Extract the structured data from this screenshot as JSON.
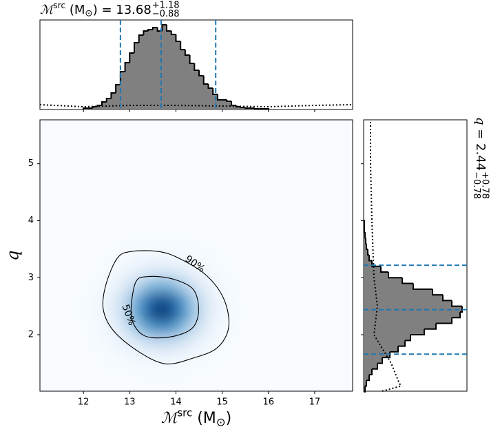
{
  "chart_data": {
    "type": "corner",
    "title": {
      "symbol": "ℳ",
      "sup": "src",
      "rest": " (M",
      "sub": "⊙",
      "tail": ") = 13.68",
      "upper": "+1.18",
      "lower": "−0.88"
    },
    "right_title": {
      "symbol": "q",
      "rest": " = 2.44",
      "upper": "+0.78",
      "lower": "−0.78"
    },
    "xlabel": {
      "symbol": "ℳ",
      "sup": "src",
      "rest": " (M",
      "sub": "⊙",
      "tail": ")"
    },
    "ylabel": "q",
    "xlim": [
      11.06,
      17.82
    ],
    "ylim": [
      1.01,
      5.77
    ],
    "xticks": [
      12,
      13,
      14,
      15,
      16,
      17
    ],
    "yticks": [
      2,
      3,
      4,
      5
    ],
    "density": {
      "colormap": "Blues",
      "vmax": 100,
      "x_edges": [
        12.0,
        12.25,
        12.5,
        12.75,
        13.0,
        13.25,
        13.5,
        13.75,
        14.0,
        14.25,
        14.5,
        14.75,
        15.0,
        15.25,
        15.5
      ],
      "y_edges": [
        1.25,
        1.5,
        1.75,
        2.0,
        2.25,
        2.5,
        2.75,
        3.0,
        3.25,
        3.5
      ],
      "values": [
        [
          0,
          0,
          0,
          0,
          0,
          1,
          1,
          1,
          1,
          0,
          0,
          0,
          0,
          0
        ],
        [
          0,
          0,
          1,
          2,
          3,
          5,
          6,
          6,
          4,
          2,
          1,
          0,
          0,
          0
        ],
        [
          0,
          1,
          3,
          7,
          13,
          21,
          26,
          24,
          18,
          10,
          5,
          2,
          0,
          0
        ],
        [
          0,
          2,
          6,
          17,
          34,
          53,
          64,
          61,
          45,
          26,
          12,
          4,
          1,
          0
        ],
        [
          1,
          3,
          10,
          25,
          50,
          79,
          97,
          92,
          68,
          39,
          18,
          6,
          2,
          0
        ],
        [
          1,
          3,
          9,
          23,
          46,
          71,
          87,
          83,
          61,
          35,
          16,
          6,
          1,
          0
        ],
        [
          0,
          1,
          5,
          12,
          25,
          39,
          47,
          45,
          33,
          19,
          9,
          3,
          1,
          0
        ],
        [
          0,
          0,
          2,
          4,
          8,
          13,
          15,
          15,
          11,
          6,
          3,
          1,
          0,
          0
        ],
        [
          0,
          0,
          0,
          1,
          2,
          2,
          3,
          3,
          2,
          1,
          1,
          0,
          0,
          0
        ]
      ]
    },
    "contours": [
      {
        "label": "50%",
        "x": [
          13.13,
          13.4,
          13.92,
          14.37,
          14.49,
          14.37,
          13.99,
          13.47,
          13.18,
          13.03
        ],
        "y": [
          2.92,
          3.02,
          2.98,
          2.8,
          2.44,
          2.13,
          1.98,
          1.95,
          2.07,
          2.37
        ]
      },
      {
        "label": "90%",
        "x": [
          12.48,
          12.73,
          13.03,
          13.62,
          14.07,
          14.66,
          15.04,
          15.14,
          14.89,
          14.37,
          13.77,
          13.18,
          12.65,
          12.43
        ],
        "y": [
          2.86,
          3.34,
          3.46,
          3.46,
          3.34,
          3.04,
          2.62,
          2.13,
          1.77,
          1.59,
          1.49,
          1.71,
          2.07,
          2.44
        ]
      }
    ],
    "x_hist": {
      "color": "#808080",
      "ylim": [
        0,
        130
      ],
      "quantile_color": "#1f77b4",
      "bins": [
        12.0,
        12.1,
        12.2,
        12.3,
        12.4,
        12.5,
        12.6,
        12.7,
        12.8,
        12.9,
        13.0,
        13.1,
        13.2,
        13.3,
        13.4,
        13.5,
        13.6,
        13.7,
        13.8,
        13.9,
        14.0,
        14.1,
        14.2,
        14.3,
        14.4,
        14.5,
        14.6,
        14.7,
        14.8,
        14.9,
        15.0,
        15.1,
        15.2,
        15.3,
        15.4,
        15.5,
        15.6,
        15.7,
        15.8,
        15.9,
        16.0
      ],
      "counts": [
        2,
        2,
        4,
        6,
        11,
        16,
        24,
        36,
        55,
        68,
        82,
        97,
        108,
        114,
        116,
        119,
        114,
        123,
        114,
        109,
        99,
        87,
        79,
        67,
        57,
        49,
        37,
        31,
        22,
        14,
        14,
        12,
        6,
        4,
        3,
        2,
        2,
        1,
        1,
        1
      ],
      "quantiles": [
        12.8,
        13.68,
        14.86
      ],
      "prior": {
        "x": [
          11.06,
          12.0,
          13.0,
          14.0,
          15.0,
          16.0,
          17.0,
          17.82
        ],
        "values": [
          7,
          4,
          6,
          6,
          5,
          4,
          6,
          7
        ]
      }
    },
    "y_hist": {
      "color": "#808080",
      "xlim": [
        0,
        150
      ],
      "quantile_color": "#1f77b4",
      "bins": [
        1.0,
        1.1,
        1.2,
        1.3,
        1.4,
        1.5,
        1.6,
        1.7,
        1.8,
        1.9,
        2.0,
        2.1,
        2.2,
        2.3,
        2.4,
        2.5,
        2.6,
        2.7,
        2.8,
        2.9,
        3.0,
        3.1,
        3.2,
        3.3,
        3.4,
        3.5,
        3.6,
        3.7,
        3.8,
        3.9,
        4.0
      ],
      "counts": [
        2,
        4,
        8,
        12,
        20,
        27,
        38,
        50,
        60,
        68,
        88,
        105,
        128,
        140,
        143,
        128,
        115,
        100,
        72,
        56,
        36,
        25,
        12,
        8,
        6,
        4,
        3,
        2,
        1,
        1
      ],
      "quantiles": [
        1.66,
        2.44,
        3.22
      ],
      "prior": {
        "y": [
          1.01,
          1.1,
          1.2,
          1.5,
          2.0,
          2.5,
          3.0,
          4.0,
          5.0,
          5.77
        ],
        "values": [
          27,
          54,
          50,
          40,
          15,
          20,
          15,
          12,
          10,
          10
        ]
      }
    }
  }
}
